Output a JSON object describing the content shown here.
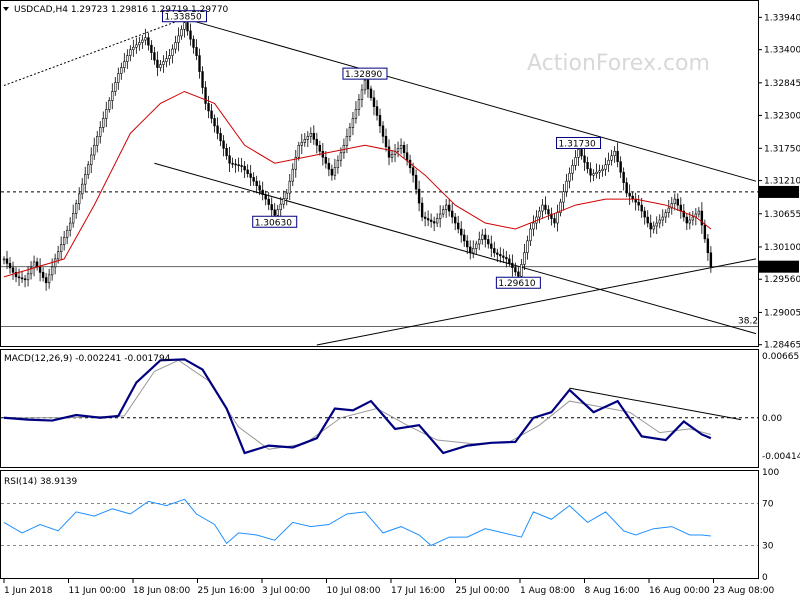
{
  "chart_data": [
    {
      "type": "candlestick",
      "title": "USDCAD,H4  1.29723 1.29816 1.29719 1.29770",
      "symbol": "USDCAD",
      "timeframe": "H4",
      "ohlc_header": {
        "open": 1.29723,
        "high": 1.29816,
        "low": 1.29719,
        "close": 1.2977
      },
      "watermark": "ActionForex.com",
      "ylim": [
        1.2846,
        1.3418
      ],
      "y_ticks": [
        "1.33940",
        "1.33400",
        "1.32845",
        "1.32300",
        "1.31750",
        "1.31210",
        "1.30655",
        "1.30100",
        "1.29560",
        "1.29005",
        "1.28465"
      ],
      "x_ticks": [
        "1 Jun 2018",
        "11 Jun 00:00",
        "18 Jun 08:00",
        "25 Jun 16:00",
        "3 Jul 00:00",
        "10 Jul 08:00",
        "17 Jul 16:00",
        "25 Jul 00:00",
        "1 Aug 08:00",
        "8 Aug 16:00",
        "16 Aug 00:00",
        "23 Aug 08:00"
      ],
      "price_path": [
        [
          0,
          1.299
        ],
        [
          4,
          1.296
        ],
        [
          7,
          1.2955
        ],
        [
          10,
          1.2985
        ],
        [
          14,
          1.295
        ],
        [
          17,
          1.299
        ],
        [
          22,
          1.305
        ],
        [
          26,
          1.3115
        ],
        [
          30,
          1.318
        ],
        [
          34,
          1.324
        ],
        [
          38,
          1.33
        ],
        [
          42,
          1.334
        ],
        [
          47,
          1.336
        ],
        [
          51,
          1.331
        ],
        [
          55,
          1.333
        ],
        [
          60,
          1.3385
        ],
        [
          64,
          1.333
        ],
        [
          67,
          1.325
        ],
        [
          71,
          1.32
        ],
        [
          75,
          1.315
        ],
        [
          79,
          1.3145
        ],
        [
          83,
          1.312
        ],
        [
          87,
          1.309
        ],
        [
          90,
          1.3063
        ],
        [
          94,
          1.31
        ],
        [
          98,
          1.318
        ],
        [
          102,
          1.32
        ],
        [
          106,
          1.316
        ],
        [
          109,
          1.313
        ],
        [
          113,
          1.318
        ],
        [
          117,
          1.324
        ],
        [
          120,
          1.3289
        ],
        [
          124,
          1.323
        ],
        [
          128,
          1.316
        ],
        [
          132,
          1.318
        ],
        [
          136,
          1.313
        ],
        [
          139,
          1.306
        ],
        [
          143,
          1.305
        ],
        [
          147,
          1.308
        ],
        [
          151,
          1.304
        ],
        [
          155,
          1.3
        ],
        [
          159,
          1.303
        ],
        [
          163,
          1.3
        ],
        [
          167,
          1.299
        ],
        [
          171,
          1.2961
        ],
        [
          175,
          1.304
        ],
        [
          179,
          1.308
        ],
        [
          183,
          1.305
        ],
        [
          187,
          1.312
        ],
        [
          191,
          1.3173
        ],
        [
          195,
          1.313
        ],
        [
          199,
          1.314
        ],
        [
          203,
          1.317
        ],
        [
          207,
          1.31
        ],
        [
          211,
          1.308
        ],
        [
          215,
          1.304
        ],
        [
          219,
          1.306
        ],
        [
          223,
          1.309
        ],
        [
          227,
          1.305
        ],
        [
          231,
          1.307
        ],
        [
          235,
          1.2977
        ]
      ],
      "moving_average": [
        [
          0,
          1.296
        ],
        [
          20,
          1.299
        ],
        [
          30,
          1.308
        ],
        [
          42,
          1.32
        ],
        [
          52,
          1.325
        ],
        [
          60,
          1.327
        ],
        [
          70,
          1.325
        ],
        [
          80,
          1.318
        ],
        [
          90,
          1.315
        ],
        [
          100,
          1.316
        ],
        [
          110,
          1.317
        ],
        [
          120,
          1.318
        ],
        [
          130,
          1.317
        ],
        [
          140,
          1.313
        ],
        [
          150,
          1.308
        ],
        [
          160,
          1.305
        ],
        [
          170,
          1.304
        ],
        [
          180,
          1.306
        ],
        [
          190,
          1.308
        ],
        [
          200,
          1.309
        ],
        [
          210,
          1.309
        ],
        [
          220,
          1.308
        ],
        [
          230,
          1.306
        ],
        [
          235,
          1.304
        ]
      ],
      "annotations": [
        {
          "label": "1.33850",
          "bar": 60,
          "price": 1.3385
        },
        {
          "label": "1.32890",
          "bar": 120,
          "price": 1.3289
        },
        {
          "label": "1.30630",
          "bar": 90,
          "price": 1.3063
        },
        {
          "label": "1.31730",
          "bar": 191,
          "price": 1.3173
        },
        {
          "label": "1.29610",
          "bar": 171,
          "price": 1.2961
        }
      ],
      "horizontal_lines": [
        {
          "price": 1.3102,
          "label": "1.31020",
          "style": "dashed"
        },
        {
          "price": 1.2977,
          "label": "1.29770",
          "style": "solid"
        },
        {
          "price": 1.2877,
          "label": "38.2",
          "style": "solid"
        }
      ],
      "trendlines": [
        {
          "from": [
            0,
            1.328
          ],
          "to": [
            60,
            1.3392
          ],
          "style": "dotted"
        },
        {
          "from": [
            60,
            1.3392
          ],
          "to": [
            250,
            1.312
          ],
          "style": "solid"
        },
        {
          "from": [
            50,
            1.315
          ],
          "to": [
            250,
            1.2865
          ],
          "style": "solid"
        },
        {
          "from": [
            104,
            1.2846
          ],
          "to": [
            250,
            1.299
          ],
          "style": "solid"
        }
      ]
    },
    {
      "type": "line",
      "title": "MACD(12,26,9) -0.002241 -0.001794",
      "indicator": "MACD",
      "params": "12,26,9",
      "ylim": [
        -0.0052,
        0.0072
      ],
      "y_ticks": [
        "0.006651",
        "0.00",
        "-0.004145"
      ],
      "series": [
        {
          "values": [
            [
              0,
              0.0
            ],
            [
              8,
              -0.0002
            ],
            [
              16,
              -0.0003
            ],
            [
              24,
              0.0003
            ],
            [
              32,
              0.0
            ],
            [
              38,
              0.0002
            ],
            [
              44,
              0.0038
            ],
            [
              52,
              0.0062
            ],
            [
              60,
              0.0063
            ],
            [
              66,
              0.0052
            ],
            [
              74,
              0.001
            ],
            [
              80,
              -0.0038
            ],
            [
              88,
              -0.003
            ],
            [
              96,
              -0.0032
            ],
            [
              104,
              -0.0022
            ],
            [
              110,
              0.001
            ],
            [
              116,
              0.0008
            ],
            [
              122,
              0.0018
            ],
            [
              130,
              -0.0012
            ],
            [
              138,
              -0.0008
            ],
            [
              146,
              -0.0038
            ],
            [
              154,
              -0.003
            ],
            [
              162,
              -0.0027
            ],
            [
              170,
              -0.0026
            ],
            [
              176,
              0.0
            ],
            [
              182,
              0.0006
            ],
            [
              188,
              0.003
            ],
            [
              196,
              0.0006
            ],
            [
              204,
              0.0018
            ],
            [
              212,
              -0.002
            ],
            [
              220,
              -0.0024
            ],
            [
              226,
              -0.0004
            ],
            [
              232,
              -0.0018
            ],
            [
              235,
              -0.0022
            ]
          ]
        },
        {
          "values": [
            [
              0,
              0.0
            ],
            [
              20,
              0.0
            ],
            [
              40,
              0.0002
            ],
            [
              50,
              0.005
            ],
            [
              58,
              0.0062
            ],
            [
              68,
              0.004
            ],
            [
              78,
              -0.001
            ],
            [
              88,
              -0.0034
            ],
            [
              100,
              -0.0028
            ],
            [
              112,
              0.0
            ],
            [
              124,
              0.001
            ],
            [
              134,
              -0.0008
            ],
            [
              144,
              -0.0024
            ],
            [
              156,
              -0.0028
            ],
            [
              168,
              -0.0026
            ],
            [
              178,
              -0.0008
            ],
            [
              188,
              0.0018
            ],
            [
              198,
              0.0012
            ],
            [
              208,
              0.0006
            ],
            [
              218,
              -0.0016
            ],
            [
              228,
              -0.0012
            ],
            [
              235,
              -0.0018
            ]
          ]
        }
      ],
      "trendlines": [
        {
          "from": [
            188,
            0.0032
          ],
          "to": [
            245,
            -0.0002
          ]
        }
      ]
    },
    {
      "type": "line",
      "title": "RSI(14) 38.9139",
      "indicator": "RSI",
      "params": "14",
      "ylim": [
        0,
        100
      ],
      "y_ticks": [
        "100",
        "70",
        "30",
        "0"
      ],
      "levels": [
        70,
        30
      ],
      "series": [
        {
          "values": [
            [
              0,
              52
            ],
            [
              6,
              42
            ],
            [
              12,
              50
            ],
            [
              18,
              44
            ],
            [
              24,
              62
            ],
            [
              30,
              58
            ],
            [
              36,
              65
            ],
            [
              42,
              60
            ],
            [
              48,
              72
            ],
            [
              54,
              68
            ],
            [
              60,
              74
            ],
            [
              64,
              60
            ],
            [
              70,
              50
            ],
            [
              74,
              32
            ],
            [
              78,
              42
            ],
            [
              84,
              40
            ],
            [
              90,
              35
            ],
            [
              96,
              52
            ],
            [
              102,
              48
            ],
            [
              108,
              50
            ],
            [
              114,
              60
            ],
            [
              120,
              62
            ],
            [
              126,
              42
            ],
            [
              132,
              48
            ],
            [
              138,
              40
            ],
            [
              142,
              30
            ],
            [
              148,
              38
            ],
            [
              154,
              38
            ],
            [
              160,
              46
            ],
            [
              166,
              42
            ],
            [
              172,
              38
            ],
            [
              176,
              62
            ],
            [
              182,
              55
            ],
            [
              188,
              68
            ],
            [
              194,
              52
            ],
            [
              200,
              62
            ],
            [
              206,
              44
            ],
            [
              210,
              40
            ],
            [
              216,
              46
            ],
            [
              222,
              48
            ],
            [
              228,
              40
            ],
            [
              232,
              40
            ],
            [
              235,
              39
            ]
          ]
        }
      ]
    }
  ]
}
